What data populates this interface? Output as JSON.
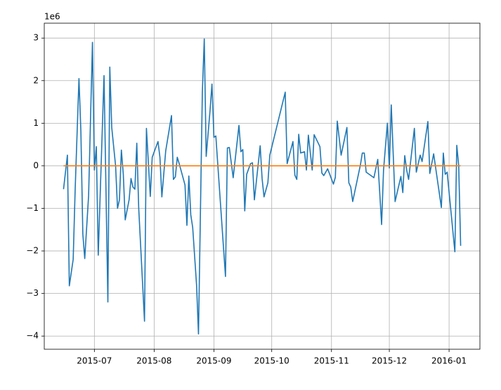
{
  "chart_data": {
    "type": "line",
    "y_offset_label": "1e6",
    "xlim": [
      "2015-06-05",
      "2016-01-17"
    ],
    "ylim": [
      -4.31,
      3.35
    ],
    "xticks": [
      {
        "value": "2015-07-01",
        "label": "2015-07"
      },
      {
        "value": "2015-08-01",
        "label": "2015-08"
      },
      {
        "value": "2015-09-01",
        "label": "2015-09"
      },
      {
        "value": "2015-10-01",
        "label": "2015-10"
      },
      {
        "value": "2015-11-01",
        "label": "2015-11"
      },
      {
        "value": "2015-12-01",
        "label": "2015-12"
      },
      {
        "value": "2016-01-01",
        "label": "2016-01"
      }
    ],
    "yticks": [
      {
        "value": -4,
        "label": "−4"
      },
      {
        "value": -3,
        "label": "−3"
      },
      {
        "value": -2,
        "label": "−2"
      },
      {
        "value": -1,
        "label": "−1"
      },
      0,
      1,
      2,
      3
    ],
    "grid": true,
    "series": [
      {
        "color": "#1f77b4",
        "x": [
          "2015-06-15",
          "2015-06-17",
          "2015-06-18",
          "2015-06-20",
          "2015-06-21",
          "2015-06-23",
          "2015-06-24",
          "2015-06-25",
          "2015-06-26",
          "2015-06-28",
          "2015-06-30",
          "2015-07-01",
          "2015-07-02",
          "2015-07-03",
          "2015-07-06",
          "2015-07-08",
          "2015-07-09",
          "2015-07-10",
          "2015-07-12",
          "2015-07-13",
          "2015-07-14",
          "2015-07-15",
          "2015-07-16",
          "2015-07-17",
          "2015-07-19",
          "2015-07-20",
          "2015-07-21",
          "2015-07-22",
          "2015-07-23",
          "2015-07-24",
          "2015-07-27",
          "2015-07-28",
          "2015-07-30",
          "2015-07-31",
          "2015-08-03",
          "2015-08-04",
          "2015-08-05",
          "2015-08-07",
          "2015-08-10",
          "2015-08-11",
          "2015-08-12",
          "2015-08-13",
          "2015-08-14",
          "2015-08-17",
          "2015-08-18",
          "2015-08-19",
          "2015-08-20",
          "2015-08-21",
          "2015-08-23",
          "2015-08-24",
          "2015-08-26",
          "2015-08-27",
          "2015-08-28",
          "2015-08-30",
          "2015-08-31",
          "2015-09-01",
          "2015-09-02",
          "2015-09-07",
          "2015-09-08",
          "2015-09-09",
          "2015-09-11",
          "2015-09-14",
          "2015-09-15",
          "2015-09-16",
          "2015-09-17",
          "2015-09-18",
          "2015-09-20",
          "2015-09-21",
          "2015-09-22",
          "2015-09-25",
          "2015-09-26",
          "2015-09-27",
          "2015-09-29",
          "2015-09-30",
          "2015-10-08",
          "2015-10-09",
          "2015-10-12",
          "2015-10-13",
          "2015-10-14",
          "2015-10-15",
          "2015-10-16",
          "2015-10-18",
          "2015-10-19",
          "2015-10-20",
          "2015-10-22",
          "2015-10-23",
          "2015-10-26",
          "2015-10-27",
          "2015-10-28",
          "2015-10-30",
          "2015-11-02",
          "2015-11-03",
          "2015-11-04",
          "2015-11-06",
          "2015-11-09",
          "2015-11-10",
          "2015-11-11",
          "2015-11-12",
          "2015-11-16",
          "2015-11-17",
          "2015-11-18",
          "2015-11-19",
          "2015-11-23",
          "2015-11-25",
          "2015-11-27",
          "2015-11-28",
          "2015-11-30",
          "2015-12-01",
          "2015-12-02",
          "2015-12-04",
          "2015-12-07",
          "2015-12-08",
          "2015-12-09",
          "2015-12-10",
          "2015-12-11",
          "2015-12-14",
          "2015-12-15",
          "2015-12-17",
          "2015-12-18",
          "2015-12-21",
          "2015-12-22",
          "2015-12-24",
          "2015-12-28",
          "2015-12-29",
          "2015-12-30",
          "2015-12-31",
          "2016-01-04",
          "2016-01-05",
          "2016-01-06",
          "2016-01-07"
        ],
        "values": [
          -0.55,
          0.25,
          -2.82,
          -2.2,
          -0.6,
          2.05,
          0.8,
          -1.6,
          -2.18,
          -0.7,
          2.9,
          -0.1,
          0.45,
          -2.1,
          2.12,
          -3.2,
          2.32,
          0.9,
          0,
          -1.0,
          -0.8,
          0.37,
          -0.2,
          -1.27,
          -0.8,
          -0.3,
          -0.5,
          -0.55,
          0.53,
          -1.0,
          -3.65,
          0.88,
          -0.72,
          0.2,
          0.57,
          0.2,
          -0.73,
          0.35,
          1.18,
          -0.32,
          -0.26,
          0.2,
          0.05,
          -0.45,
          -1.4,
          -0.24,
          -1.15,
          -1.45,
          -2.8,
          -3.95,
          1.72,
          2.98,
          0.22,
          1.3,
          1.92,
          0.67,
          0.7,
          -2.6,
          0.42,
          0.43,
          -0.28,
          0.95,
          0.33,
          0.38,
          -1.06,
          -0.2,
          0.05,
          0.07,
          -0.8,
          0.47,
          -0.3,
          -0.73,
          -0.4,
          0.25,
          1.73,
          0.05,
          0.57,
          -0.22,
          -0.32,
          0.74,
          0.3,
          0.33,
          -0.1,
          0.72,
          -0.1,
          0.73,
          0.45,
          -0.17,
          -0.23,
          -0.07,
          -0.43,
          -0.27,
          1.05,
          0.25,
          0.9,
          -0.4,
          -0.5,
          -0.84,
          0.02,
          0.3,
          0.3,
          -0.15,
          -0.28,
          0.15,
          -1.38,
          -0.1,
          1.0,
          -0.05,
          1.43,
          -0.84,
          -0.25,
          -0.63,
          0.24,
          -0.1,
          -0.32,
          0.88,
          -0.15,
          0.25,
          0.1,
          1.04,
          -0.18,
          0.28,
          -0.98,
          0.3,
          -0.2,
          -0.15,
          -2.02,
          0.48,
          0,
          -1.88
        ]
      },
      {
        "color": "#ff7f0e",
        "x": [
          "2015-06-15",
          "2016-01-07"
        ],
        "values": [
          0,
          0
        ]
      }
    ]
  }
}
